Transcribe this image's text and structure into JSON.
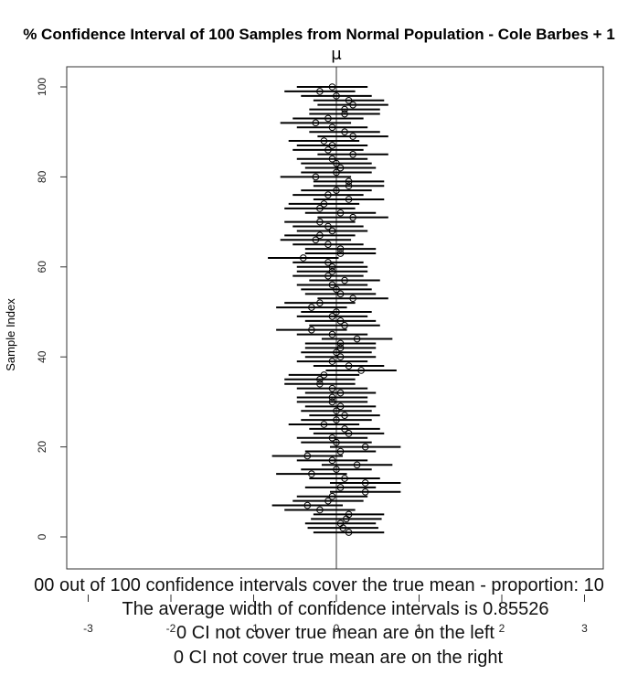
{
  "chart_data": {
    "type": "scatter",
    "title": "% Confidence Interval of 100  Samples from Normal Population -  Cole Barbes + 1",
    "mu_label": "μ",
    "ylabel": "Sample Index",
    "xlabel": "",
    "xlim": [
      -3.2,
      3.3
    ],
    "ylim": [
      -4,
      104
    ],
    "x_ticks": [
      -3,
      -2,
      -1,
      0,
      1,
      2,
      3
    ],
    "y_ticks": [
      0,
      20,
      40,
      60,
      80,
      100
    ],
    "true_mean": 0,
    "interval_width": 0.85526,
    "means": [
      0.15,
      0.08,
      0.05,
      0.12,
      0.15,
      -0.2,
      -0.35,
      -0.1,
      -0.05,
      0.35,
      0.05,
      0.35,
      0.1,
      -0.3,
      0.0,
      0.25,
      -0.05,
      -0.35,
      0.05,
      0.35,
      0.0,
      -0.05,
      0.15,
      0.1,
      -0.15,
      0.0,
      0.1,
      0.0,
      0.05,
      -0.05,
      -0.05,
      0.05,
      -0.05,
      -0.2,
      -0.2,
      -0.15,
      0.3,
      0.15,
      -0.05,
      0.05,
      0.0,
      0.05,
      0.05,
      0.25,
      -0.05,
      -0.3,
      0.1,
      0.05,
      -0.05,
      0.0,
      -0.3,
      -0.2,
      0.2,
      0.05,
      0.0,
      -0.05,
      0.1,
      -0.1,
      -0.05,
      -0.05,
      -0.1,
      -0.4,
      0.05,
      0.05,
      -0.1,
      -0.25,
      -0.2,
      -0.05,
      -0.1,
      -0.2,
      0.2,
      0.05,
      -0.2,
      -0.15,
      0.15,
      -0.1,
      0.0,
      0.15,
      0.15,
      -0.25,
      0.0,
      0.05,
      0.0,
      -0.05,
      0.2,
      -0.1,
      -0.05,
      -0.15,
      0.2,
      0.1,
      -0.05,
      -0.25,
      -0.1,
      0.1,
      0.1,
      0.2,
      0.15,
      0.0,
      -0.2,
      -0.05
    ]
  },
  "footer": {
    "line1": "00 out of 100 confidence intervals cover the true mean - proportion: 10",
    "line2": "The average width of confidence intervals is 0.85526",
    "line3": "0 CI not cover true mean are on the left",
    "line4": "0 CI not cover true mean are on the right"
  }
}
